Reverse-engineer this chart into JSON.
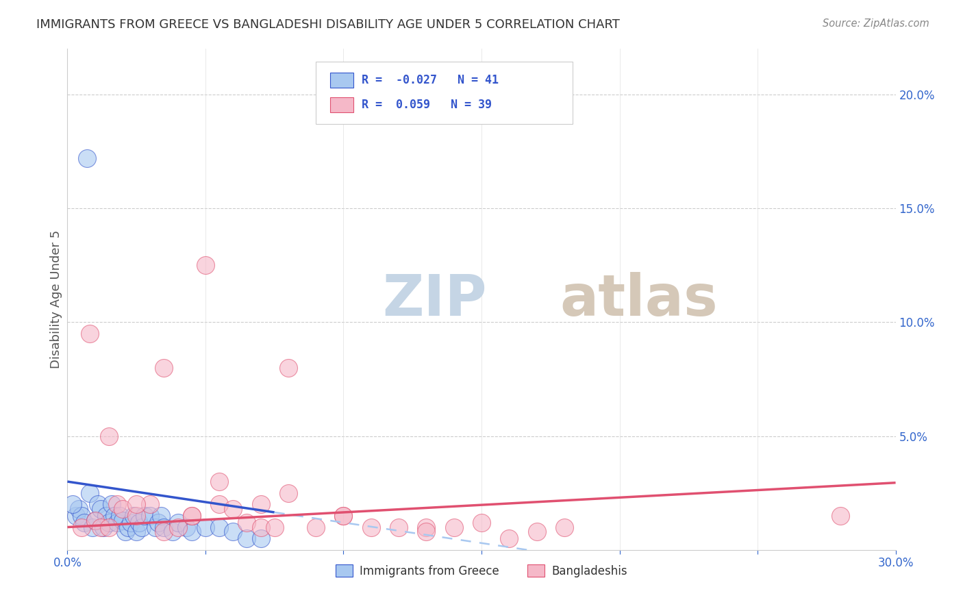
{
  "title": "IMMIGRANTS FROM GREECE VS BANGLADESHI DISABILITY AGE UNDER 5 CORRELATION CHART",
  "source": "Source: ZipAtlas.com",
  "ylabel": "Disability Age Under 5",
  "blue_label": "Immigrants from Greece",
  "pink_label": "Bangladeshis",
  "blue_R": -0.027,
  "blue_N": 41,
  "pink_R": 0.059,
  "pink_N": 39,
  "xlim": [
    0.0,
    0.3
  ],
  "ylim": [
    0.0,
    0.22
  ],
  "blue_scatter_x": [
    0.003,
    0.004,
    0.005,
    0.006,
    0.007,
    0.008,
    0.009,
    0.01,
    0.011,
    0.012,
    0.013,
    0.014,
    0.015,
    0.016,
    0.017,
    0.018,
    0.019,
    0.02,
    0.021,
    0.022,
    0.023,
    0.024,
    0.025,
    0.026,
    0.027,
    0.028,
    0.03,
    0.032,
    0.033,
    0.034,
    0.035,
    0.038,
    0.04,
    0.043,
    0.045,
    0.05,
    0.055,
    0.06,
    0.065,
    0.07,
    0.002
  ],
  "blue_scatter_y": [
    0.015,
    0.018,
    0.015,
    0.012,
    0.172,
    0.025,
    0.01,
    0.013,
    0.02,
    0.018,
    0.01,
    0.015,
    0.012,
    0.02,
    0.015,
    0.012,
    0.015,
    0.013,
    0.008,
    0.01,
    0.012,
    0.015,
    0.008,
    0.012,
    0.01,
    0.015,
    0.015,
    0.01,
    0.012,
    0.015,
    0.01,
    0.008,
    0.012,
    0.01,
    0.008,
    0.01,
    0.01,
    0.008,
    0.005,
    0.005,
    0.02
  ],
  "pink_scatter_x": [
    0.005,
    0.008,
    0.01,
    0.012,
    0.015,
    0.018,
    0.02,
    0.025,
    0.03,
    0.035,
    0.04,
    0.045,
    0.05,
    0.055,
    0.06,
    0.065,
    0.07,
    0.075,
    0.08,
    0.09,
    0.1,
    0.11,
    0.12,
    0.13,
    0.14,
    0.15,
    0.16,
    0.17,
    0.18,
    0.015,
    0.025,
    0.035,
    0.045,
    0.055,
    0.07,
    0.08,
    0.1,
    0.13,
    0.28
  ],
  "pink_scatter_y": [
    0.01,
    0.095,
    0.013,
    0.01,
    0.05,
    0.02,
    0.018,
    0.015,
    0.02,
    0.008,
    0.01,
    0.015,
    0.125,
    0.02,
    0.018,
    0.012,
    0.01,
    0.01,
    0.08,
    0.01,
    0.015,
    0.01,
    0.01,
    0.01,
    0.01,
    0.012,
    0.005,
    0.008,
    0.01,
    0.01,
    0.02,
    0.08,
    0.015,
    0.03,
    0.02,
    0.025,
    0.015,
    0.008,
    0.015
  ],
  "blue_color": "#a8c8f0",
  "pink_color": "#f5b8c8",
  "blue_line_color": "#3355cc",
  "pink_line_color": "#e05070",
  "watermark_zip_color": "#c8d8e8",
  "watermark_atlas_color": "#d8c8b8",
  "background_color": "#ffffff",
  "grid_color": "#cccccc"
}
